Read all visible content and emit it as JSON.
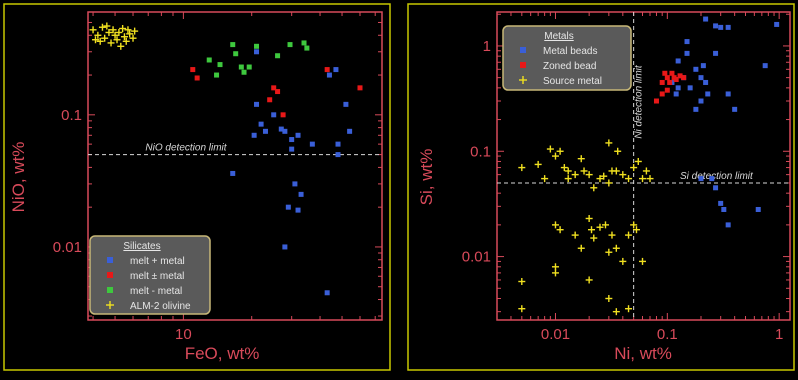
{
  "colors": {
    "background": "#000000",
    "frame": "#e8e8e8",
    "panel_border": "#c8c800",
    "axis": "#d84a5a",
    "guide": "#d8d8d8",
    "legend_fill": "#5a5a5a",
    "legend_border": "#c8b878",
    "legend_text": "#e6e6e6"
  },
  "chart_data": [
    {
      "type": "scatter",
      "title": "",
      "xlabel": "FeO, wt%",
      "ylabel": "NiO, wt%",
      "xscale": "log",
      "yscale": "log",
      "xlim": [
        3.8,
        75
      ],
      "ylim": [
        0.0028,
        0.6
      ],
      "xticks": [
        {
          "value": 10,
          "label": "10"
        }
      ],
      "yticks": [
        {
          "value": 0.01,
          "label": "0.01"
        },
        {
          "value": 0.1,
          "label": "0.1"
        }
      ],
      "grid": false,
      "legend_position": "bottom-left",
      "legend_title": "Silicates",
      "reference_lines": [
        {
          "orientation": "horizontal",
          "value": 0.05,
          "label": "NiO detection limit"
        }
      ],
      "series": [
        {
          "name": "melt + metal",
          "marker": "square",
          "color": "#3a5fd8",
          "points": [
            [
              21,
              0.3
            ],
            [
              44,
              0.2
            ],
            [
              47,
              0.22
            ],
            [
              21,
              0.12
            ],
            [
              25,
              0.1
            ],
            [
              22,
              0.085
            ],
            [
              20.5,
              0.07
            ],
            [
              23,
              0.075
            ],
            [
              27,
              0.078
            ],
            [
              28,
              0.075
            ],
            [
              30,
              0.065
            ],
            [
              32,
              0.07
            ],
            [
              37,
              0.06
            ],
            [
              48,
              0.06
            ],
            [
              52,
              0.12
            ],
            [
              54,
              0.075
            ],
            [
              16.5,
              0.036
            ],
            [
              31,
              0.03
            ],
            [
              33,
              0.025
            ],
            [
              32,
              0.019
            ],
            [
              29,
              0.02
            ],
            [
              28,
              0.01
            ],
            [
              43,
              0.0045
            ],
            [
              48,
              0.05
            ],
            [
              30,
              0.055
            ]
          ]
        },
        {
          "name": "melt ± metal",
          "marker": "square",
          "color": "#e81818",
          "points": [
            [
              11,
              0.22
            ],
            [
              11.5,
              0.19
            ],
            [
              25,
              0.16
            ],
            [
              24,
              0.13
            ],
            [
              26,
              0.15
            ],
            [
              27.5,
              0.1
            ],
            [
              43,
              0.22
            ],
            [
              60,
              0.16
            ]
          ]
        },
        {
          "name": "melt - metal",
          "marker": "square",
          "color": "#3ec83e",
          "points": [
            [
              13,
              0.26
            ],
            [
              14,
              0.2
            ],
            [
              14.5,
              0.24
            ],
            [
              16.5,
              0.34
            ],
            [
              17,
              0.29
            ],
            [
              18,
              0.23
            ],
            [
              18.5,
              0.21
            ],
            [
              19.5,
              0.23
            ],
            [
              21,
              0.33
            ],
            [
              26,
              0.28
            ],
            [
              29.5,
              0.34
            ],
            [
              34,
              0.35
            ],
            [
              35,
              0.32
            ]
          ]
        },
        {
          "name": "ALM-2 olivine",
          "marker": "cross",
          "color": "#f0e020",
          "points": [
            [
              4.0,
              0.44
            ],
            [
              4.2,
              0.4
            ],
            [
              4.4,
              0.46
            ],
            [
              4.5,
              0.38
            ],
            [
              4.7,
              0.42
            ],
            [
              4.8,
              0.35
            ],
            [
              4.9,
              0.44
            ],
            [
              5.0,
              0.4
            ],
            [
              5.1,
              0.37
            ],
            [
              5.2,
              0.42
            ],
            [
              5.3,
              0.33
            ],
            [
              5.4,
              0.45
            ],
            [
              5.5,
              0.39
            ],
            [
              5.6,
              0.36
            ],
            [
              5.8,
              0.41
            ],
            [
              6.0,
              0.38
            ],
            [
              4.3,
              0.36
            ],
            [
              4.6,
              0.47
            ],
            [
              5.7,
              0.44
            ],
            [
              6.1,
              0.43
            ],
            [
              4.1,
              0.37
            ]
          ]
        }
      ]
    },
    {
      "type": "scatter",
      "title": "",
      "xlabel": "Ni, wt%",
      "ylabel": "Si, wt%",
      "xscale": "log",
      "yscale": "log",
      "xlim": [
        0.003,
        1.25
      ],
      "ylim": [
        0.0025,
        2.1
      ],
      "xticks": [
        {
          "value": 0.01,
          "label": "0.01"
        },
        {
          "value": 0.1,
          "label": "0.1"
        },
        {
          "value": 1,
          "label": "1"
        }
      ],
      "yticks": [
        {
          "value": 0.01,
          "label": "0.01"
        },
        {
          "value": 0.1,
          "label": "0.1"
        },
        {
          "value": 1,
          "label": "1"
        }
      ],
      "grid": false,
      "legend_position": "top-left",
      "legend_title": "Metals",
      "reference_lines": [
        {
          "orientation": "horizontal",
          "value": 0.05,
          "label": "Si detection limit"
        },
        {
          "orientation": "vertical",
          "value": 0.05,
          "label": "Ni detection limit"
        }
      ],
      "series": [
        {
          "name": "Metal beads",
          "marker": "square",
          "color": "#3a5fd8",
          "points": [
            [
              0.11,
              0.45
            ],
            [
              0.12,
              0.35
            ],
            [
              0.125,
              0.4
            ],
            [
              0.14,
              0.5
            ],
            [
              0.16,
              0.4
            ],
            [
              0.18,
              0.25
            ],
            [
              0.2,
              0.5
            ],
            [
              0.21,
              0.65
            ],
            [
              0.22,
              0.45
            ],
            [
              0.23,
              0.35
            ],
            [
              0.22,
              1.8
            ],
            [
              0.27,
              1.55
            ],
            [
              0.3,
              1.5
            ],
            [
              0.35,
              1.5
            ],
            [
              0.35,
              0.35
            ],
            [
              0.15,
              1.1
            ],
            [
              0.125,
              0.72
            ],
            [
              0.15,
              0.85
            ],
            [
              0.18,
              0.6
            ],
            [
              0.27,
              0.85
            ],
            [
              0.2,
              0.3
            ],
            [
              0.25,
              0.055
            ],
            [
              0.27,
              0.045
            ],
            [
              0.3,
              0.032
            ],
            [
              0.32,
              0.028
            ],
            [
              0.35,
              0.02
            ],
            [
              0.65,
              0.028
            ],
            [
              0.75,
              0.65
            ],
            [
              0.95,
              1.6
            ],
            [
              0.4,
              0.25
            ],
            [
              0.2,
              0.055
            ]
          ]
        },
        {
          "name": "Zoned bead",
          "marker": "square",
          "color": "#e81818",
          "points": [
            [
              0.08,
              0.3
            ],
            [
              0.09,
              0.45
            ],
            [
              0.095,
              0.55
            ],
            [
              0.1,
              0.5
            ],
            [
              0.105,
              0.45
            ],
            [
              0.11,
              0.55
            ],
            [
              0.115,
              0.5
            ],
            [
              0.12,
              0.48
            ],
            [
              0.13,
              0.52
            ],
            [
              0.14,
              0.5
            ],
            [
              0.1,
              0.38
            ],
            [
              0.09,
              0.35
            ]
          ]
        },
        {
          "name": "Source metal",
          "marker": "cross",
          "color": "#f0e020",
          "points": [
            [
              0.009,
              0.105
            ],
            [
              0.01,
              0.09
            ],
            [
              0.011,
              0.1
            ],
            [
              0.007,
              0.075
            ],
            [
              0.005,
              0.07
            ],
            [
              0.008,
              0.055
            ],
            [
              0.013,
              0.065
            ],
            [
              0.015,
              0.06
            ],
            [
              0.018,
              0.065
            ],
            [
              0.02,
              0.06
            ],
            [
              0.022,
              0.045
            ],
            [
              0.025,
              0.055
            ],
            [
              0.027,
              0.058
            ],
            [
              0.03,
              0.12
            ],
            [
              0.032,
              0.065
            ],
            [
              0.035,
              0.065
            ],
            [
              0.04,
              0.06
            ],
            [
              0.045,
              0.055
            ],
            [
              0.05,
              0.07
            ],
            [
              0.055,
              0.08
            ],
            [
              0.06,
              0.055
            ],
            [
              0.065,
              0.065
            ],
            [
              0.07,
              0.055
            ],
            [
              0.012,
              0.07
            ],
            [
              0.013,
              0.055
            ],
            [
              0.017,
              0.085
            ],
            [
              0.036,
              0.1
            ],
            [
              0.03,
              0.05
            ],
            [
              0.01,
              0.02
            ],
            [
              0.011,
              0.018
            ],
            [
              0.015,
              0.016
            ],
            [
              0.017,
              0.012
            ],
            [
              0.02,
              0.023
            ],
            [
              0.021,
              0.018
            ],
            [
              0.022,
              0.015
            ],
            [
              0.025,
              0.019
            ],
            [
              0.028,
              0.02
            ],
            [
              0.032,
              0.016
            ],
            [
              0.035,
              0.012
            ],
            [
              0.04,
              0.009
            ],
            [
              0.05,
              0.02
            ],
            [
              0.053,
              0.018
            ],
            [
              0.01,
              0.008
            ],
            [
              0.01,
              0.007
            ],
            [
              0.02,
              0.006
            ],
            [
              0.03,
              0.004
            ],
            [
              0.035,
              0.003
            ],
            [
              0.005,
              0.0058
            ],
            [
              0.005,
              0.0032
            ],
            [
              0.045,
              0.0032
            ],
            [
              0.03,
              0.011
            ],
            [
              0.045,
              0.016
            ],
            [
              0.06,
              0.009
            ]
          ]
        }
      ]
    }
  ]
}
